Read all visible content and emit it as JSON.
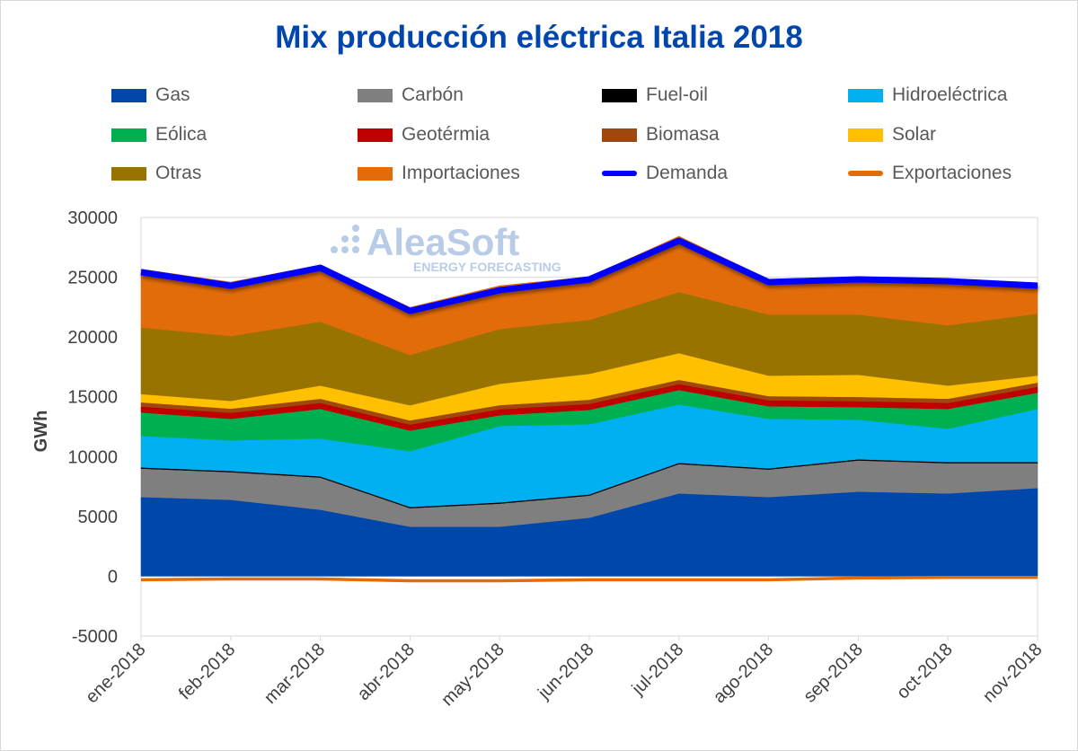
{
  "chart_data": {
    "type": "area",
    "stacked": true,
    "title": "Mix producción eléctrica Italia 2018",
    "ylabel": "GWh",
    "xlabel": "",
    "ylim": [
      -5000,
      30000
    ],
    "yticks": [
      -5000,
      0,
      5000,
      10000,
      15000,
      20000,
      25000,
      30000
    ],
    "grid": "horizontal",
    "legend_position": "top",
    "categories": [
      "ene-2018",
      "feb-2018",
      "mar-2018",
      "abr-2018",
      "may-2018",
      "jun-2018",
      "jul-2018",
      "ago-2018",
      "sep-2018",
      "oct-2018",
      "nov-2018"
    ],
    "series": [
      {
        "name": "Gas",
        "color": "#0047ab",
        "kind": "area",
        "values": [
          6620,
          6390,
          5560,
          4140,
          4140,
          4890,
          6920,
          6620,
          7070,
          6920,
          7370
        ]
      },
      {
        "name": "Carbón",
        "color": "#7f7f7f",
        "kind": "area",
        "values": [
          2380,
          2310,
          2690,
          1550,
          1930,
          1850,
          2460,
          2300,
          2610,
          2530,
          2080
        ]
      },
      {
        "name": "Fuel-oil",
        "color": "#000000",
        "kind": "area",
        "values": [
          100,
          100,
          100,
          100,
          100,
          100,
          100,
          100,
          100,
          100,
          100
        ]
      },
      {
        "name": "Hidroeléctrica",
        "color": "#00b0f0",
        "kind": "area",
        "values": [
          2630,
          2560,
          3160,
          4660,
          6390,
          5870,
          4880,
          4140,
          3310,
          2780,
          4440
        ]
      },
      {
        "name": "Eólica",
        "color": "#00b050",
        "kind": "area",
        "values": [
          1960,
          1800,
          2480,
          1730,
          900,
          1200,
          1210,
          1050,
          1050,
          1660,
          1350
        ]
      },
      {
        "name": "Geotérmia",
        "color": "#c00000",
        "kind": "area",
        "values": [
          500,
          500,
          500,
          500,
          500,
          500,
          500,
          500,
          500,
          500,
          500
        ]
      },
      {
        "name": "Biomasa",
        "color": "#9e480e",
        "kind": "area",
        "values": [
          350,
          350,
          350,
          350,
          350,
          350,
          350,
          350,
          350,
          350,
          350
        ]
      },
      {
        "name": "Solar",
        "color": "#ffc000",
        "kind": "area",
        "values": [
          690,
          650,
          1100,
          1260,
          1780,
          2160,
          2230,
          1710,
          1850,
          1100,
          580
        ]
      },
      {
        "name": "Otras",
        "color": "#997300",
        "kind": "area",
        "values": [
          5570,
          5420,
          5340,
          4210,
          4590,
          4510,
          5110,
          5110,
          5040,
          5040,
          5190
        ]
      },
      {
        "name": "Importaciones",
        "color": "#e36c0a",
        "kind": "area",
        "values": [
          4880,
          4510,
          4740,
          3980,
          3610,
          3610,
          4670,
          2940,
          3160,
          3910,
          2330
        ]
      },
      {
        "name": "Demanda",
        "color": "#0000ff",
        "kind": "line",
        "values": [
          25420,
          24290,
          25790,
          22180,
          23910,
          24820,
          28050,
          24590,
          24820,
          24670,
          24290
        ]
      },
      {
        "name": "Exportaciones",
        "color": "#e36c0a",
        "kind": "line",
        "values": [
          -300,
          -230,
          -230,
          -380,
          -380,
          -300,
          -300,
          -300,
          -150,
          -100,
          -100
        ]
      }
    ]
  },
  "watermark": {
    "brand": "AleaSoft",
    "tagline": "ENERGY FORECASTING"
  }
}
